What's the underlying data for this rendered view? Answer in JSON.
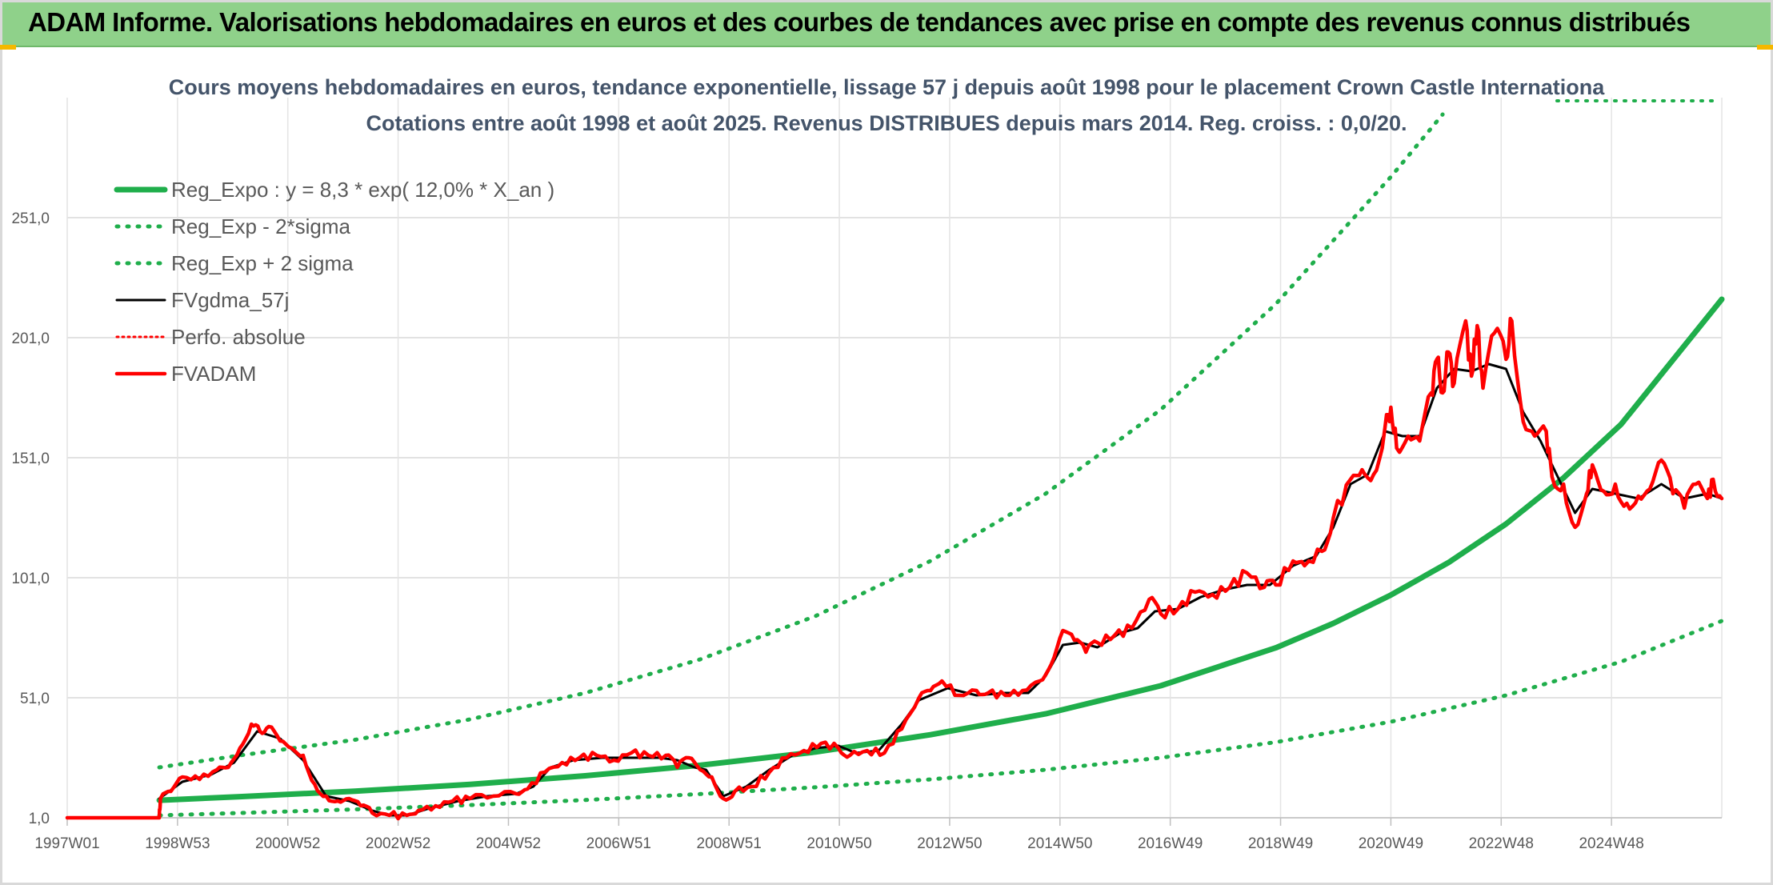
{
  "banner": {
    "title": "ADAM Informe. Valorisations hebdomadaires en euros et des courbes de tendances avec prise en compte des revenus connus distribués"
  },
  "chart_data": {
    "type": "line",
    "title": "Cours moyens hebdomadaires en euros, tendance exponentielle, lissage 57 j depuis août 1998 pour le placement Crown Castle Internationa",
    "subtitle": "Cotations entre août 1998 et août 2025. Revenus DISTRIBUES depuis mars 2014. Reg. croiss. : 0,0/20.",
    "xlabel": "",
    "ylabel": "",
    "x_ticks": [
      "1997W01",
      "1998W53",
      "2000W52",
      "2002W52",
      "2004W52",
      "2006W51",
      "2008W51",
      "2010W50",
      "2012W50",
      "2014W50",
      "2016W49",
      "2018W49",
      "2020W49",
      "2022W48",
      "2024W48"
    ],
    "y_ticks": [
      "1,0",
      "51,0",
      "101,0",
      "151,0",
      "201,0",
      "251,0"
    ],
    "y_range": [
      1,
      301
    ],
    "x_range": [
      1997.0,
      2025.75
    ],
    "grid": true,
    "legend_position": "top-left",
    "colors": {
      "trend": "#1fae4b",
      "band": "#1fae4b",
      "smooth": "#000000",
      "perfo": "#ff0000",
      "adam": "#ff0000",
      "banner": "#8fd18a"
    },
    "series": [
      {
        "name": "Reg_Expo : y = 8,3 * exp( 12,0% *  X_an )",
        "style": "solid-thick",
        "points": [
          [
            1998.6,
            8.3
          ],
          [
            2000.0,
            9.8
          ],
          [
            2002.0,
            12.1
          ],
          [
            2004.0,
            14.9
          ],
          [
            2006.0,
            18.5
          ],
          [
            2008.0,
            22.9
          ],
          [
            2010.0,
            28.4
          ],
          [
            2012.0,
            35.6
          ],
          [
            2014.0,
            44.3
          ],
          [
            2016.0,
            56.0
          ],
          [
            2018.0,
            71.8
          ],
          [
            2019.0,
            82.0
          ],
          [
            2020.0,
            93.8
          ],
          [
            2021.0,
            107.3
          ],
          [
            2022.0,
            123.4
          ],
          [
            2023.0,
            142.6
          ],
          [
            2024.0,
            164.9
          ],
          [
            2025.75,
            217.0
          ]
        ]
      },
      {
        "name": "Reg_Exp - 2*sigma",
        "style": "dotted",
        "points": [
          [
            1998.6,
            2.0
          ],
          [
            2000.0,
            3.0
          ],
          [
            2002.0,
            4.5
          ],
          [
            2004.0,
            6.3
          ],
          [
            2006.0,
            8.4
          ],
          [
            2008.0,
            10.9
          ],
          [
            2010.0,
            13.7
          ],
          [
            2012.0,
            17.0
          ],
          [
            2014.0,
            21.0
          ],
          [
            2016.0,
            26.0
          ],
          [
            2018.0,
            32.5
          ],
          [
            2020.0,
            41.0
          ],
          [
            2022.0,
            52.0
          ],
          [
            2024.0,
            66.0
          ],
          [
            2025.75,
            83.0
          ]
        ]
      },
      {
        "name": "Reg_Exp + 2 sigma",
        "style": "dotted",
        "points": [
          [
            1998.6,
            22.0
          ],
          [
            2000.0,
            27.0
          ],
          [
            2002.0,
            33.5
          ],
          [
            2004.0,
            42.0
          ],
          [
            2006.0,
            53.0
          ],
          [
            2008.0,
            67.0
          ],
          [
            2010.0,
            85.0
          ],
          [
            2012.0,
            108.0
          ],
          [
            2014.0,
            136.0
          ],
          [
            2016.0,
            171.0
          ],
          [
            2018.0,
            215.0
          ],
          [
            2020.0,
            268.0
          ],
          [
            2020.9,
            294.0
          ]
        ]
      },
      {
        "name": "FVgdma_57j",
        "style": "solid",
        "points": [
          [
            1998.6,
            9.0
          ],
          [
            1999.0,
            16.0
          ],
          [
            1999.5,
            19.0
          ],
          [
            1999.9,
            24.0
          ],
          [
            2000.3,
            37.0
          ],
          [
            2000.7,
            34.0
          ],
          [
            2001.1,
            25.0
          ],
          [
            2001.5,
            10.0
          ],
          [
            2001.9,
            8.0
          ],
          [
            2002.3,
            4.0
          ],
          [
            2002.6,
            2.0
          ],
          [
            2002.9,
            2.0
          ],
          [
            2003.3,
            5.0
          ],
          [
            2003.8,
            8.0
          ],
          [
            2004.3,
            10.0
          ],
          [
            2004.8,
            11.0
          ],
          [
            2005.1,
            14.0
          ],
          [
            2005.4,
            22.0
          ],
          [
            2005.8,
            25.0
          ],
          [
            2006.3,
            26.0
          ],
          [
            2006.8,
            26.0
          ],
          [
            2007.3,
            26.0
          ],
          [
            2007.6,
            25.0
          ],
          [
            2007.9,
            22.0
          ],
          [
            2008.1,
            21.0
          ],
          [
            2008.4,
            10.0
          ],
          [
            2008.8,
            14.0
          ],
          [
            2009.2,
            21.0
          ],
          [
            2009.6,
            27.0
          ],
          [
            2010.0,
            30.0
          ],
          [
            2010.4,
            31.0
          ],
          [
            2010.7,
            28.0
          ],
          [
            2011.1,
            29.0
          ],
          [
            2011.5,
            40.0
          ],
          [
            2011.8,
            50.0
          ],
          [
            2012.3,
            55.0
          ],
          [
            2012.8,
            52.0
          ],
          [
            2013.3,
            53.0
          ],
          [
            2013.7,
            53.0
          ],
          [
            2014.0,
            60.0
          ],
          [
            2014.3,
            73.0
          ],
          [
            2014.6,
            74.0
          ],
          [
            2014.9,
            72.0
          ],
          [
            2015.3,
            78.0
          ],
          [
            2015.6,
            80.0
          ],
          [
            2015.9,
            87.0
          ],
          [
            2016.3,
            88.0
          ],
          [
            2016.7,
            93.0
          ],
          [
            2017.1,
            96.0
          ],
          [
            2017.5,
            98.0
          ],
          [
            2017.9,
            98.0
          ],
          [
            2018.3,
            106.0
          ],
          [
            2018.7,
            110.0
          ],
          [
            2019.0,
            122.0
          ],
          [
            2019.3,
            140.0
          ],
          [
            2019.6,
            144.0
          ],
          [
            2019.9,
            162.0
          ],
          [
            2020.2,
            160.0
          ],
          [
            2020.5,
            160.0
          ],
          [
            2020.8,
            180.0
          ],
          [
            2021.1,
            188.0
          ],
          [
            2021.4,
            187.0
          ],
          [
            2021.7,
            190.0
          ],
          [
            2022.0,
            188.0
          ],
          [
            2022.3,
            170.0
          ],
          [
            2022.6,
            158.0
          ],
          [
            2022.9,
            143.0
          ],
          [
            2023.2,
            128.0
          ],
          [
            2023.5,
            138.0
          ],
          [
            2023.9,
            136.0
          ],
          [
            2024.3,
            134.0
          ],
          [
            2024.7,
            140.0
          ],
          [
            2025.1,
            134.0
          ],
          [
            2025.5,
            136.0
          ],
          [
            2025.75,
            134.0
          ]
        ]
      },
      {
        "name": "Perfo. absolue",
        "style": "dotted",
        "points": [
          [
            1997.0,
            1.0
          ],
          [
            1998.6,
            1.0
          ]
        ]
      },
      {
        "name": "FVADAM",
        "style": "solid-thick",
        "points": [
          [
            1997.0,
            1.0
          ],
          [
            1998.6,
            1.0
          ],
          [
            1998.62,
            9.0
          ],
          [
            1998.8,
            12.0
          ],
          [
            1999.0,
            18.0
          ],
          [
            1999.3,
            17.0
          ],
          [
            1999.6,
            21.0
          ],
          [
            1999.8,
            22.0
          ],
          [
            2000.0,
            30.0
          ],
          [
            2000.2,
            40.0
          ],
          [
            2000.35,
            37.0
          ],
          [
            2000.5,
            39.0
          ],
          [
            2000.7,
            33.0
          ],
          [
            2000.9,
            30.0
          ],
          [
            2001.1,
            27.0
          ],
          [
            2001.3,
            15.0
          ],
          [
            2001.5,
            10.0
          ],
          [
            2001.7,
            8.0
          ],
          [
            2001.9,
            9.0
          ],
          [
            2002.1,
            6.0
          ],
          [
            2002.3,
            3.0
          ],
          [
            2002.6,
            2.0
          ],
          [
            2002.9,
            2.0
          ],
          [
            2003.1,
            4.0
          ],
          [
            2003.4,
            6.0
          ],
          [
            2003.7,
            8.0
          ],
          [
            2004.0,
            9.0
          ],
          [
            2004.4,
            10.0
          ],
          [
            2004.8,
            11.0
          ],
          [
            2005.0,
            13.0
          ],
          [
            2005.3,
            20.0
          ],
          [
            2005.6,
            24.0
          ],
          [
            2005.9,
            26.0
          ],
          [
            2006.2,
            27.0
          ],
          [
            2006.5,
            25.0
          ],
          [
            2006.8,
            28.0
          ],
          [
            2007.1,
            27.0
          ],
          [
            2007.4,
            27.0
          ],
          [
            2007.6,
            22.0
          ],
          [
            2007.8,
            26.0
          ],
          [
            2008.0,
            21.0
          ],
          [
            2008.2,
            18.0
          ],
          [
            2008.4,
            9.0
          ],
          [
            2008.6,
            12.0
          ],
          [
            2008.9,
            14.0
          ],
          [
            2009.2,
            20.0
          ],
          [
            2009.5,
            26.0
          ],
          [
            2009.8,
            29.0
          ],
          [
            2010.1,
            32.0
          ],
          [
            2010.4,
            30.0
          ],
          [
            2010.6,
            27.0
          ],
          [
            2010.9,
            29.0
          ],
          [
            2011.2,
            28.0
          ],
          [
            2011.5,
            38.0
          ],
          [
            2011.8,
            51.0
          ],
          [
            2012.0,
            54.0
          ],
          [
            2012.2,
            58.0
          ],
          [
            2012.5,
            52.0
          ],
          [
            2012.8,
            54.0
          ],
          [
            2013.0,
            53.0
          ],
          [
            2013.3,
            52.0
          ],
          [
            2013.6,
            54.0
          ],
          [
            2013.9,
            58.0
          ],
          [
            2014.1,
            65.0
          ],
          [
            2014.3,
            79.0
          ],
          [
            2014.5,
            75.0
          ],
          [
            2014.7,
            70.0
          ],
          [
            2014.9,
            74.0
          ],
          [
            2015.2,
            77.0
          ],
          [
            2015.5,
            80.0
          ],
          [
            2015.8,
            92.0
          ],
          [
            2016.0,
            86.0
          ],
          [
            2016.3,
            88.0
          ],
          [
            2016.6,
            95.0
          ],
          [
            2016.9,
            94.0
          ],
          [
            2017.2,
            97.0
          ],
          [
            2017.5,
            103.0
          ],
          [
            2017.8,
            97.0
          ],
          [
            2018.0,
            98.0
          ],
          [
            2018.3,
            108.0
          ],
          [
            2018.5,
            106.0
          ],
          [
            2018.8,
            112.0
          ],
          [
            2019.0,
            126.0
          ],
          [
            2019.3,
            142.0
          ],
          [
            2019.5,
            146.0
          ],
          [
            2019.7,
            144.0
          ],
          [
            2019.9,
            164.0
          ],
          [
            2020.0,
            172.0
          ],
          [
            2020.1,
            155.0
          ],
          [
            2020.3,
            160.0
          ],
          [
            2020.5,
            158.0
          ],
          [
            2020.7,
            178.0
          ],
          [
            2020.8,
            192.0
          ],
          [
            2020.9,
            178.0
          ],
          [
            2021.0,
            195.0
          ],
          [
            2021.1,
            182.0
          ],
          [
            2021.3,
            208.0
          ],
          [
            2021.4,
            185.0
          ],
          [
            2021.5,
            206.0
          ],
          [
            2021.6,
            180.0
          ],
          [
            2021.8,
            203.0
          ],
          [
            2022.0,
            192.0
          ],
          [
            2022.1,
            208.0
          ],
          [
            2022.3,
            166.0
          ],
          [
            2022.5,
            160.0
          ],
          [
            2022.7,
            162.0
          ],
          [
            2022.8,
            143.0
          ],
          [
            2023.0,
            140.0
          ],
          [
            2023.2,
            122.0
          ],
          [
            2023.4,
            136.0
          ],
          [
            2023.5,
            148.0
          ],
          [
            2023.7,
            137.0
          ],
          [
            2023.9,
            140.0
          ],
          [
            2024.1,
            132.0
          ],
          [
            2024.3,
            135.0
          ],
          [
            2024.5,
            138.0
          ],
          [
            2024.7,
            150.0
          ],
          [
            2024.9,
            136.0
          ],
          [
            2025.1,
            130.0
          ],
          [
            2025.3,
            140.0
          ],
          [
            2025.5,
            134.0
          ],
          [
            2025.6,
            142.0
          ],
          [
            2025.75,
            134.0
          ]
        ]
      }
    ]
  }
}
